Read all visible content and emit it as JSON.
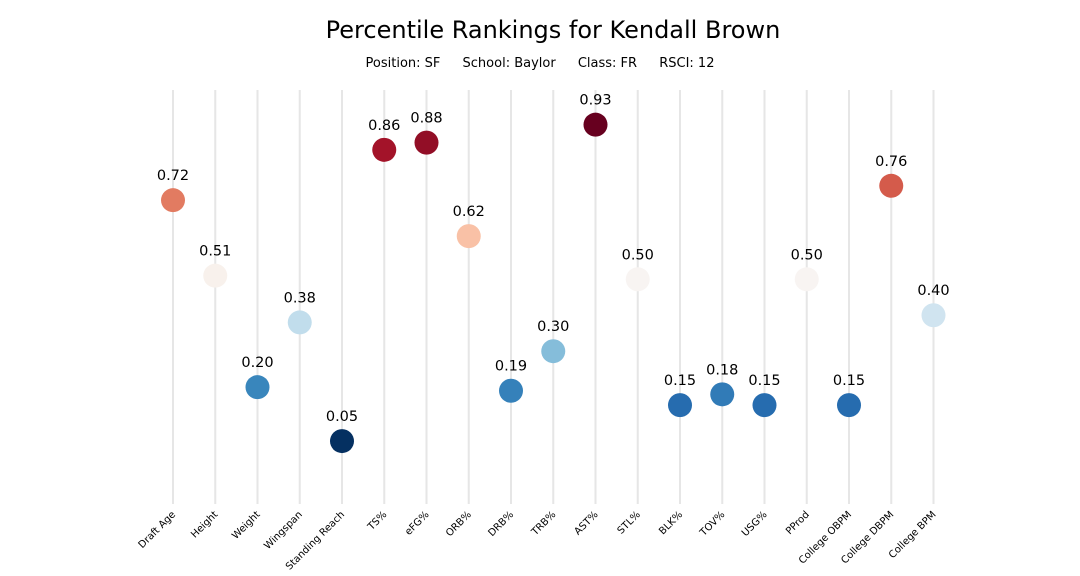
{
  "title": "Percentile Rankings for Kendall Brown",
  "subtitle": {
    "position": "Position: SF",
    "school": "School: Baylor",
    "class": "Class: FR",
    "rsci": "RSCI: 12"
  },
  "chart_data": {
    "type": "scatter",
    "categories": [
      "Draft Age",
      "Height",
      "Weight",
      "Wingspan",
      "Standing Reach",
      "TS%",
      "eFG%",
      "ORB%",
      "DRB%",
      "TRB%",
      "AST%",
      "STL%",
      "BLK%",
      "TOV%",
      "USG%",
      "PProd",
      "College OBPM",
      "College DBPM",
      "College BPM"
    ],
    "values": [
      0.72,
      0.51,
      0.2,
      0.38,
      0.05,
      0.86,
      0.88,
      0.62,
      0.19,
      0.3,
      0.93,
      0.5,
      0.15,
      0.18,
      0.15,
      0.5,
      0.15,
      0.76,
      0.4
    ],
    "value_labels": [
      "0.72",
      "0.51",
      "0.20",
      "0.38",
      "0.05",
      "0.86",
      "0.88",
      "0.62",
      "0.19",
      "0.30",
      "0.93",
      "0.50",
      "0.15",
      "0.18",
      "0.15",
      "0.50",
      "0.15",
      "0.76",
      "0.40"
    ],
    "colormap": "RdBu_r",
    "ylim": [
      -0.15,
      1.0
    ],
    "grid": "vertical lines",
    "xlabel": "",
    "ylabel": ""
  }
}
